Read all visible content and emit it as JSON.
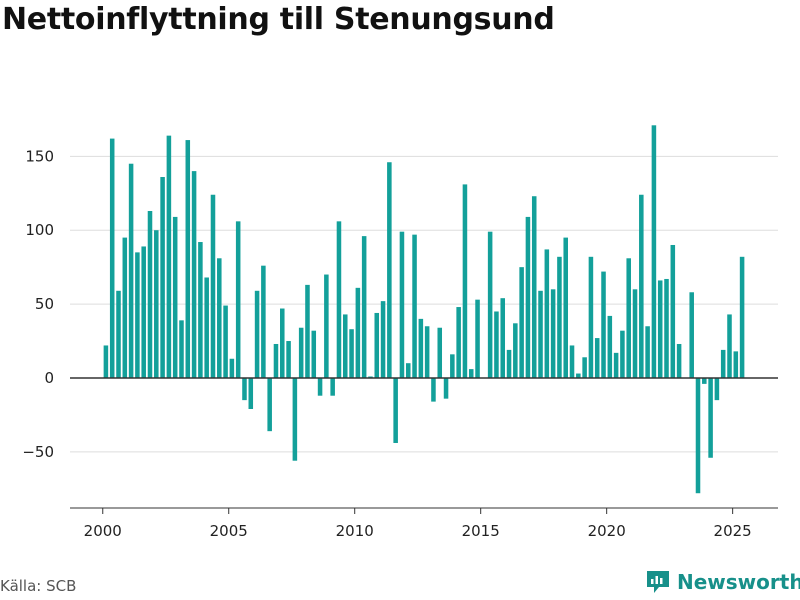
{
  "title": "Nettoinflyttning till Stenungsund",
  "source": "Källa: SCB",
  "brand": {
    "name": "Newsworthy",
    "icon": "newsworthy-logo-icon"
  },
  "colors": {
    "bar": "#13a09a",
    "grid": "#dddddd",
    "zero": "#333333",
    "axis": "#333333",
    "brand": "#17908a"
  },
  "chart_data": {
    "type": "bar",
    "title": "Nettoinflyttning till Stenungsund",
    "xlabel": "",
    "ylabel": "",
    "x_ticks": [
      2000,
      2005,
      2010,
      2015,
      2020,
      2025
    ],
    "y_ticks": [
      -50,
      0,
      50,
      100,
      150
    ],
    "xlim": [
      1998.7,
      2026.8
    ],
    "ylim": [
      -88,
      180
    ],
    "grid": true,
    "legend": "none",
    "series": [
      {
        "x": [
          2000.125,
          2000.375,
          2000.625,
          2000.875,
          2001.125,
          2001.375,
          2001.625,
          2001.875,
          2002.125,
          2002.375,
          2002.625,
          2002.875,
          2003.125,
          2003.375,
          2003.625,
          2003.875,
          2004.125,
          2004.375,
          2004.625,
          2004.875,
          2005.125,
          2005.375,
          2005.625,
          2005.875,
          2006.125,
          2006.375,
          2006.625,
          2006.875,
          2007.125,
          2007.375,
          2007.625,
          2007.875,
          2008.125,
          2008.375,
          2008.625,
          2008.875,
          2009.125,
          2009.375,
          2009.625,
          2009.875,
          2010.125,
          2010.375,
          2010.625,
          2010.875,
          2011.125,
          2011.375,
          2011.625,
          2011.875,
          2012.125,
          2012.375,
          2012.625,
          2012.875,
          2013.125,
          2013.375,
          2013.625,
          2013.875,
          2014.125,
          2014.375,
          2014.625,
          2014.875,
          2015.125,
          2015.375,
          2015.625,
          2015.875,
          2016.125,
          2016.375,
          2016.625,
          2016.875,
          2017.125,
          2017.375,
          2017.625,
          2017.875,
          2018.125,
          2018.375,
          2018.625,
          2018.875,
          2019.125,
          2019.375,
          2019.625,
          2019.875,
          2020.125,
          2020.375,
          2020.625,
          2020.875,
          2021.125,
          2021.375,
          2021.625,
          2021.875,
          2022.125,
          2022.375,
          2022.625,
          2022.875,
          2023.125,
          2023.375,
          2023.625,
          2023.875,
          2024.125,
          2024.375,
          2024.625,
          2024.875,
          2025.125,
          2025.375
        ],
        "values": [
          22,
          162,
          59,
          95,
          145,
          85,
          89,
          113,
          100,
          136,
          164,
          109,
          39,
          161,
          140,
          92,
          68,
          124,
          81,
          49,
          13,
          106,
          -15,
          -21,
          59,
          76,
          -36,
          23,
          47,
          25,
          -56,
          34,
          63,
          32,
          -12,
          70,
          -12,
          106,
          43,
          33,
          61,
          96,
          1,
          44,
          52,
          146,
          -44,
          99,
          10,
          97,
          40,
          35,
          -16,
          34,
          -14,
          16,
          48,
          131,
          6,
          53,
          0,
          99,
          45,
          54,
          19,
          37,
          75,
          109,
          123,
          59,
          87,
          60,
          82,
          95,
          22,
          3,
          14,
          82,
          27,
          72,
          42,
          17,
          32,
          81,
          60,
          124,
          35,
          171,
          66,
          67,
          90,
          23,
          0,
          58,
          -78,
          -4,
          -54,
          -15,
          19,
          43,
          18,
          82
        ]
      }
    ]
  }
}
